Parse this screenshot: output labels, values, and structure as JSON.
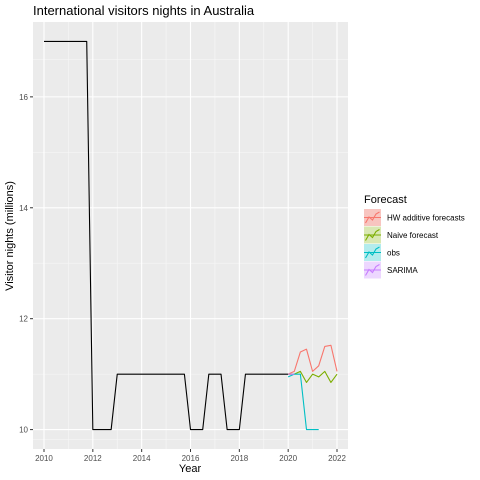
{
  "chart_data": {
    "type": "line",
    "title": "International visitors nights in Australia",
    "xlabel": "Year",
    "ylabel": "Visitor nights (millions)",
    "xlim": [
      2009.55,
      2022.45
    ],
    "ylim": [
      9.65,
      17.35
    ],
    "x_ticks": [
      2010,
      2012,
      2014,
      2016,
      2018,
      2020,
      2022
    ],
    "y_ticks": [
      10,
      12,
      14,
      16
    ],
    "grid": true,
    "legend": {
      "title": "Forecast",
      "position": "right",
      "entries": [
        "HW additive forecasts",
        "Naive forecast",
        "obs",
        "SARIMA"
      ]
    },
    "history": {
      "color": "#000000",
      "x": [
        2010.0,
        2010.25,
        2010.5,
        2010.75,
        2011.0,
        2011.25,
        2011.5,
        2011.75,
        2012.0,
        2012.25,
        2012.5,
        2012.75,
        2013.0,
        2013.25,
        2013.5,
        2013.75,
        2014.0,
        2014.25,
        2014.5,
        2014.75,
        2015.0,
        2015.25,
        2015.5,
        2015.75,
        2016.0,
        2016.25,
        2016.5,
        2016.75,
        2017.0,
        2017.25,
        2017.5,
        2017.75,
        2018.0,
        2018.25,
        2018.5,
        2018.75,
        2019.0,
        2019.25,
        2019.5,
        2019.75,
        2020.0
      ],
      "y": [
        17,
        17,
        17,
        17,
        17,
        17,
        17,
        17,
        10,
        10,
        10,
        10,
        11,
        11,
        11,
        11,
        11,
        11,
        11,
        11,
        11,
        11,
        11,
        11,
        10,
        10,
        10,
        11,
        11,
        11,
        10,
        10,
        10,
        11,
        11,
        11,
        11,
        11,
        11,
        11,
        11
      ]
    },
    "series": [
      {
        "name": "HW additive forecasts",
        "color": "#F8766D",
        "x": [
          2020.0,
          2020.25,
          2020.5,
          2020.75,
          2021.0,
          2021.25,
          2021.5,
          2021.75,
          2022.0
        ],
        "y": [
          11.0,
          11.05,
          11.4,
          11.45,
          11.05,
          11.15,
          11.5,
          11.52,
          11.05
        ]
      },
      {
        "name": "Naive forecast",
        "color": "#7CAE00",
        "x": [
          2020.0,
          2020.25,
          2020.5,
          2020.75,
          2021.0,
          2021.25,
          2021.5,
          2021.75,
          2022.0
        ],
        "y": [
          11.0,
          11.0,
          11.05,
          10.85,
          11.0,
          10.95,
          11.05,
          10.85,
          11.0
        ]
      },
      {
        "name": "obs",
        "color": "#00BFC4",
        "x": [
          2020.0,
          2020.25,
          2020.5,
          2020.75,
          2021.0,
          2021.25
        ],
        "y": [
          10.95,
          11.0,
          11.0,
          10.0,
          10.0,
          10.0
        ]
      },
      {
        "name": "SARIMA",
        "color": "#C77CFF",
        "x": [
          2020.0,
          2020.25
        ],
        "y": [
          11.0,
          11.0
        ]
      }
    ]
  }
}
